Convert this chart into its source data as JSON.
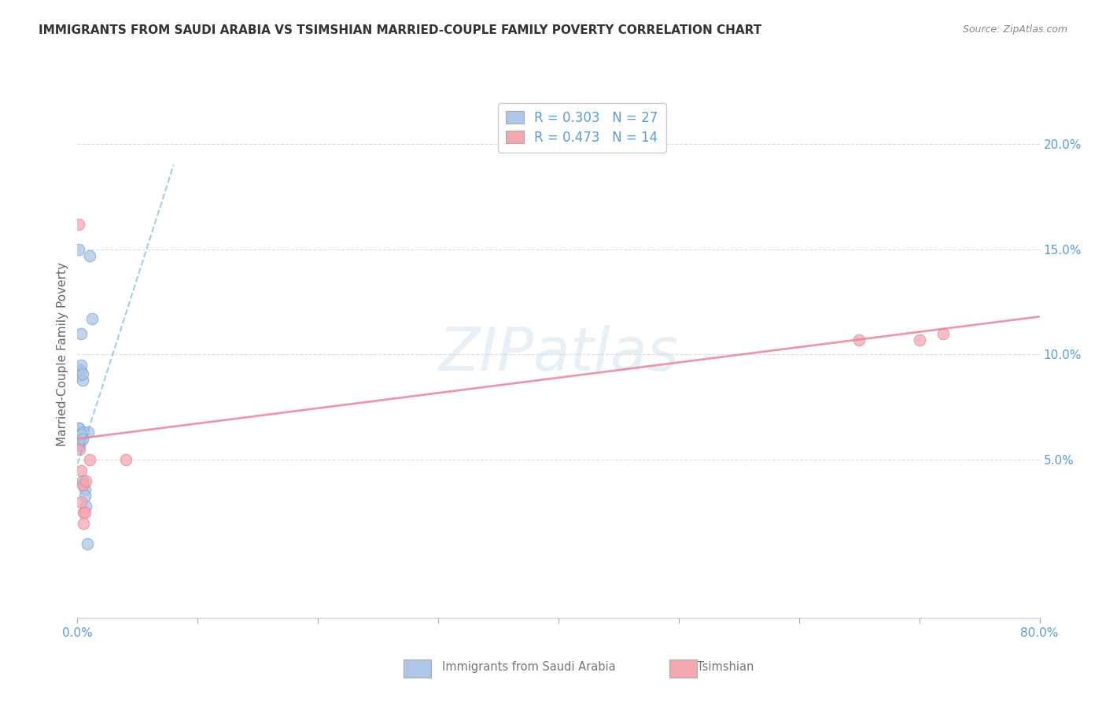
{
  "title": "IMMIGRANTS FROM SAUDI ARABIA VS TSIMSHIAN MARRIED-COUPLE FAMILY POVERTY CORRELATION CHART",
  "source": "Source: ZipAtlas.com",
  "ylabel": "Married-Couple Family Poverty",
  "xlim": [
    0.0,
    0.8
  ],
  "ylim": [
    -0.025,
    0.225
  ],
  "x_ticks": [
    0.0,
    0.1,
    0.2,
    0.3,
    0.4,
    0.5,
    0.6,
    0.7,
    0.8
  ],
  "x_tick_labels": [
    "0.0%",
    "",
    "",
    "",
    "",
    "",
    "",
    "",
    "80.0%"
  ],
  "y_ticks_right": [
    0.05,
    0.1,
    0.15,
    0.2
  ],
  "y_tick_labels_right": [
    "5.0%",
    "10.0%",
    "15.0%",
    "20.0%"
  ],
  "watermark_text": "ZIPatlas",
  "blue_scatter_x": [
    0.001,
    0.001,
    0.001,
    0.002,
    0.002,
    0.002,
    0.002,
    0.003,
    0.003,
    0.003,
    0.004,
    0.004,
    0.004,
    0.005,
    0.005,
    0.006,
    0.007,
    0.008,
    0.009,
    0.01,
    0.012,
    0.001,
    0.002,
    0.003,
    0.003,
    0.004,
    0.006
  ],
  "blue_scatter_y": [
    0.065,
    0.065,
    0.15,
    0.06,
    0.062,
    0.09,
    0.093,
    0.092,
    0.095,
    0.11,
    0.088,
    0.091,
    0.04,
    0.063,
    0.038,
    0.036,
    0.028,
    0.01,
    0.063,
    0.147,
    0.117,
    0.058,
    0.057,
    0.06,
    0.062,
    0.06,
    0.033
  ],
  "pink_scatter_x": [
    0.001,
    0.002,
    0.003,
    0.004,
    0.005,
    0.006,
    0.007,
    0.01,
    0.04,
    0.65,
    0.7,
    0.72,
    0.003,
    0.005
  ],
  "pink_scatter_y": [
    0.162,
    0.055,
    0.045,
    0.038,
    0.025,
    0.025,
    0.04,
    0.05,
    0.05,
    0.107,
    0.107,
    0.11,
    0.03,
    0.02
  ],
  "blue_line_x": [
    0.0,
    0.08
  ],
  "blue_line_y": [
    0.048,
    0.19
  ],
  "pink_line_x": [
    0.0,
    0.8
  ],
  "pink_line_y": [
    0.06,
    0.118
  ],
  "blue_color": "#aec6e8",
  "blue_edge_color": "#7ba7d4",
  "blue_line_color": "#7bafd4",
  "pink_color": "#f4a7b0",
  "pink_edge_color": "#e8879a",
  "pink_line_color": "#e8879a",
  "background_color": "#ffffff",
  "grid_color": "#dddddd",
  "title_color": "#333333",
  "source_color": "#888888",
  "tick_color": "#5b9bd5",
  "ylabel_color": "#666666",
  "legend_r_color": "#5b9bd5",
  "legend_n_color": "#5b9bd5",
  "bottom_label_color": "#777777"
}
